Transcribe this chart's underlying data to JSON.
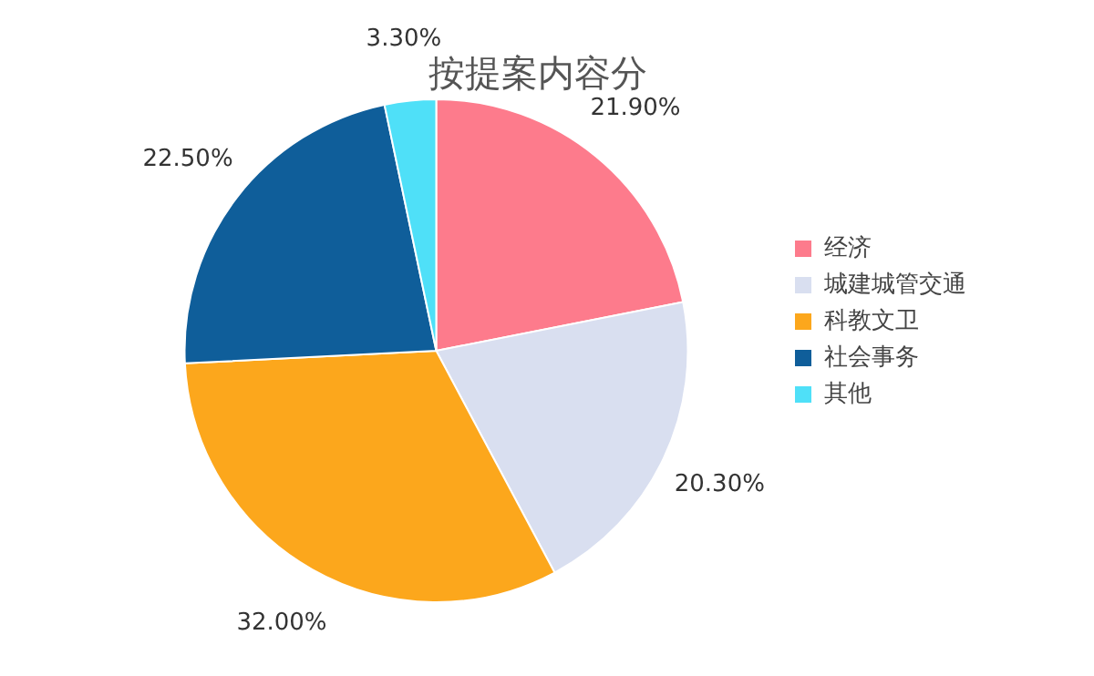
{
  "chart_data": {
    "type": "pie",
    "title": "按提案内容分",
    "categories": [
      "经济",
      "城建城管交通",
      "科教文卫",
      "社会事务",
      "其他"
    ],
    "values": [
      21.9,
      20.3,
      32.0,
      22.5,
      3.3
    ],
    "value_labels": [
      "21.90%",
      "20.30%",
      "32.00%",
      "22.50%",
      "3.30%"
    ],
    "colors": [
      "#fd7b8c",
      "#d9dff0",
      "#fca71c",
      "#0f5e9a",
      "#4fe0f8"
    ],
    "legend": "right"
  }
}
